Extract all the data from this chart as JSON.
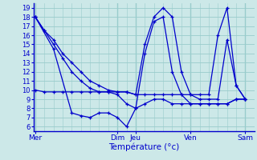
{
  "background_color": "#cce8e8",
  "grid_color": "#99cccc",
  "line_color": "#0000cc",
  "title": "Température (°c)",
  "ylabel_ticks": [
    6,
    7,
    8,
    9,
    10,
    11,
    12,
    13,
    14,
    15,
    16,
    17,
    18,
    19
  ],
  "day_labels": [
    "Mer",
    "Dim",
    "Jeu",
    "Ven",
    "Sam"
  ],
  "day_positions": [
    0,
    9,
    11,
    17,
    23
  ],
  "xlim": [
    -0.2,
    24
  ],
  "ylim": [
    5.5,
    19.5
  ],
  "series": [
    {
      "x": [
        0,
        1,
        2,
        3,
        4,
        5,
        6,
        7,
        8,
        9,
        10,
        11,
        12,
        13,
        14,
        15,
        16,
        17,
        18,
        19,
        20,
        21,
        22,
        23
      ],
      "y": [
        18,
        16.5,
        15.5,
        14,
        13,
        12,
        11,
        10.5,
        10,
        9.8,
        9.8,
        9.5,
        15,
        18,
        19,
        18,
        12,
        9.5,
        9.5,
        9.5,
        16,
        19,
        10.5,
        9
      ]
    },
    {
      "x": [
        0,
        1,
        2,
        3,
        4,
        5,
        6,
        7,
        8,
        9,
        10,
        11,
        12,
        13,
        14,
        15,
        16,
        17,
        18,
        19,
        20,
        21,
        22,
        23
      ],
      "y": [
        18,
        16.5,
        15,
        13.5,
        12,
        11,
        10.2,
        9.8,
        9.8,
        9.5,
        8.5,
        8,
        14,
        17.5,
        18,
        12,
        9.5,
        9.5,
        9,
        9,
        9,
        15.5,
        10.5,
        9
      ]
    },
    {
      "x": [
        0,
        2,
        4,
        5,
        6,
        7,
        8,
        9,
        10,
        11,
        12,
        13,
        14,
        15,
        16,
        17,
        18,
        19,
        20,
        21,
        22,
        23
      ],
      "y": [
        18,
        14.5,
        7.5,
        7.2,
        7,
        7.5,
        7.5,
        7,
        6,
        8,
        8.5,
        9,
        9,
        8.5,
        8.5,
        8.5,
        8.5,
        8.5,
        8.5,
        8.5,
        9,
        9
      ]
    },
    {
      "x": [
        0,
        1,
        2,
        3,
        4,
        5,
        6,
        7,
        8,
        9,
        10,
        11,
        12,
        13,
        14,
        15,
        16,
        17,
        18,
        19,
        20,
        21,
        22,
        23
      ],
      "y": [
        10,
        9.8,
        9.8,
        9.8,
        9.8,
        9.8,
        9.8,
        9.8,
        9.8,
        9.8,
        9.8,
        9.5,
        9.5,
        9.5,
        9.5,
        9.5,
        9.5,
        8.5,
        8.5,
        8.5,
        8.5,
        8.5,
        9,
        9
      ]
    }
  ],
  "vlines": [
    0,
    9,
    11,
    17,
    23
  ]
}
